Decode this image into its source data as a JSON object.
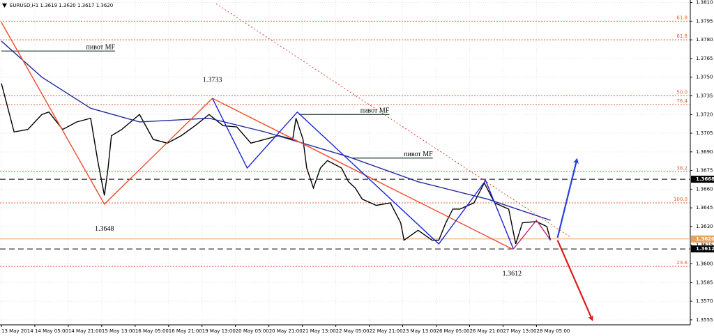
{
  "header": "EURUSD,H1  1.3619 1.3620 1.3617 1.3620",
  "chart_data": {
    "type": "line",
    "xlim": [
      0,
      20.6
    ],
    "ylim": [
      1.3551,
      1.3812
    ],
    "grid": true,
    "xticks": [
      {
        "value": 0,
        "label": "13 May 2014"
      },
      {
        "value": 1,
        "label": "14 May 05:00"
      },
      {
        "value": 2,
        "label": "14 May 21:00"
      },
      {
        "value": 3,
        "label": "15 May 13:00"
      },
      {
        "value": 4,
        "label": "16 May 05:00"
      },
      {
        "value": 5,
        "label": "16 May 21:00"
      },
      {
        "value": 6,
        "label": "19 May 13:00"
      },
      {
        "value": 7,
        "label": "20 May 05:00"
      },
      {
        "value": 8,
        "label": "20 May 21:00"
      },
      {
        "value": 9,
        "label": "21 May 13:00"
      },
      {
        "value": 10,
        "label": "22 May 05:00"
      },
      {
        "value": 11,
        "label": "22 May 21:00"
      },
      {
        "value": 12,
        "label": "23 May 13:00"
      },
      {
        "value": 13,
        "label": "26 May 05:00"
      },
      {
        "value": 14,
        "label": "26 May 21:00"
      },
      {
        "value": 15,
        "label": "27 May 13:00"
      },
      {
        "value": 16,
        "label": "28 May 05:00"
      }
    ],
    "yticks": [
      {
        "value": 1.381,
        "label": "1.3810"
      },
      1.3795,
      {
        "value": 1.378,
        "label": "1.3780"
      },
      1.3765,
      {
        "value": 1.375,
        "label": "1.3750"
      },
      1.3735,
      {
        "value": 1.372,
        "label": "1.3720"
      },
      1.3705,
      {
        "value": 1.369,
        "label": "1.3690"
      },
      1.3675,
      {
        "value": 1.366,
        "label": "1.3660"
      },
      1.3645,
      {
        "value": 1.363,
        "label": "1.3630"
      },
      1.3615,
      {
        "value": 1.36,
        "label": "1.3600"
      },
      1.3585,
      {
        "value": 1.357,
        "label": "1.3570"
      },
      1.3555
    ],
    "series": [
      {
        "color": "#000000",
        "x": [
          0,
          0.38,
          0.79,
          1.21,
          1.42,
          1.83,
          2.25,
          2.67,
          2.88,
          3.08,
          3.19,
          3.29,
          3.6,
          4.13,
          4.54,
          4.96,
          5.38,
          5.79,
          6.21,
          6.63,
          7.04,
          7.46,
          7.88,
          8.29,
          8.71,
          8.81,
          9.02,
          9.13,
          9.33,
          9.54,
          9.75,
          10.17,
          10.38,
          10.58,
          10.79,
          11.21,
          11.63,
          11.94,
          12.04,
          12.46,
          12.88,
          13.08,
          13.29,
          13.5,
          13.71,
          14.13,
          14.44,
          14.75,
          15.17,
          15.38,
          15.58,
          16,
          16.31,
          16.42
        ],
        "values": [
          1.3745,
          1.3706,
          1.3708,
          1.372,
          1.3722,
          1.3708,
          1.3714,
          1.3717,
          1.3683,
          1.3655,
          1.3677,
          1.3703,
          1.3708,
          1.372,
          1.37,
          1.3697,
          1.3703,
          1.3711,
          1.372,
          1.3711,
          1.371,
          1.3697,
          1.37,
          1.3703,
          1.37,
          1.3717,
          1.37,
          1.3677,
          1.3661,
          1.3677,
          1.3683,
          1.3677,
          1.3666,
          1.3661,
          1.3652,
          1.3647,
          1.3649,
          1.3633,
          1.3619,
          1.3627,
          1.3619,
          1.3619,
          1.3633,
          1.3644,
          1.3644,
          1.3649,
          1.3665,
          1.3649,
          1.3644,
          1.3616,
          1.3633,
          1.3634,
          1.363,
          1.3619
        ]
      },
      {
        "color": "#1f2a9c",
        "x": [
          0,
          1.21,
          2.67,
          4.13,
          6.21,
          7.88,
          10.38,
          12.46,
          14.54,
          16.42
        ],
        "values": [
          1.3779,
          1.375,
          1.3725,
          1.3714,
          1.3717,
          1.3706,
          1.3686,
          1.3666,
          1.3652,
          1.3635
        ]
      },
      {
        "color": "#d9402a",
        "dash": true,
        "x": [
          6.42,
          17.04
        ],
        "values": [
          1.3809,
          1.3621
        ]
      },
      {
        "color": "#f04a2a",
        "x": [
          0,
          3.08,
          6.31,
          15.27
        ],
        "values": [
          1.3794,
          1.3648,
          1.3733,
          1.3612
        ],
        "value_labels": [
          null,
          "1.3648",
          "1.3733",
          "1.3612"
        ]
      },
      {
        "color": "#1a22d6",
        "x": [
          6.31,
          7.35,
          8.85,
          13.08,
          14.48,
          15.31
        ],
        "values": [
          1.3733,
          1.3677,
          1.3722,
          1.3616,
          1.3667,
          1.3612
        ]
      },
      {
        "color": "#c0207a",
        "x": [
          15.31,
          16,
          16.42
        ],
        "values": [
          1.3612,
          1.3635,
          1.3619
        ]
      },
      {
        "color": "#2a3fd6",
        "arrow": true,
        "x": [
          16.63,
          17.21
        ],
        "values": [
          1.3621,
          1.3684
        ]
      },
      {
        "color": "#e01818",
        "arrow": true,
        "x": [
          16.63,
          17.67
        ],
        "values": [
          1.3619,
          1.3555
        ]
      }
    ],
    "levels": [
      {
        "value": 1.3795,
        "label": "61.8"
      },
      {
        "value": 1.378,
        "label": "61.8"
      },
      {
        "value": 1.3735,
        "label": "50.0"
      },
      {
        "value": 1.3728,
        "label": "76.4"
      },
      {
        "value": 1.3674,
        "label": "38.2"
      },
      {
        "value": 1.3649,
        "label": "100.0"
      },
      {
        "value": 1.3598,
        "label": "23.6"
      }
    ],
    "level_color": "#e0603a",
    "price_lines": [
      {
        "value": 1.3668,
        "color": "#000000",
        "dash": true
      },
      {
        "value": 1.362,
        "label": "1.3620",
        "color": "#e8a060"
      },
      {
        "value": 1.3612,
        "color": "#000000",
        "dash": true
      }
    ],
    "pivots": [
      {
        "label": "пивот MF",
        "x": [
          0,
          3.4
        ],
        "value": 1.3771
      },
      {
        "label": "пивот MF",
        "x": [
          8.9,
          11.6
        ],
        "value": 1.372
      },
      {
        "label": "пивот MF",
        "x": [
          10.5,
          12.9
        ],
        "value": 1.3685
      }
    ]
  }
}
